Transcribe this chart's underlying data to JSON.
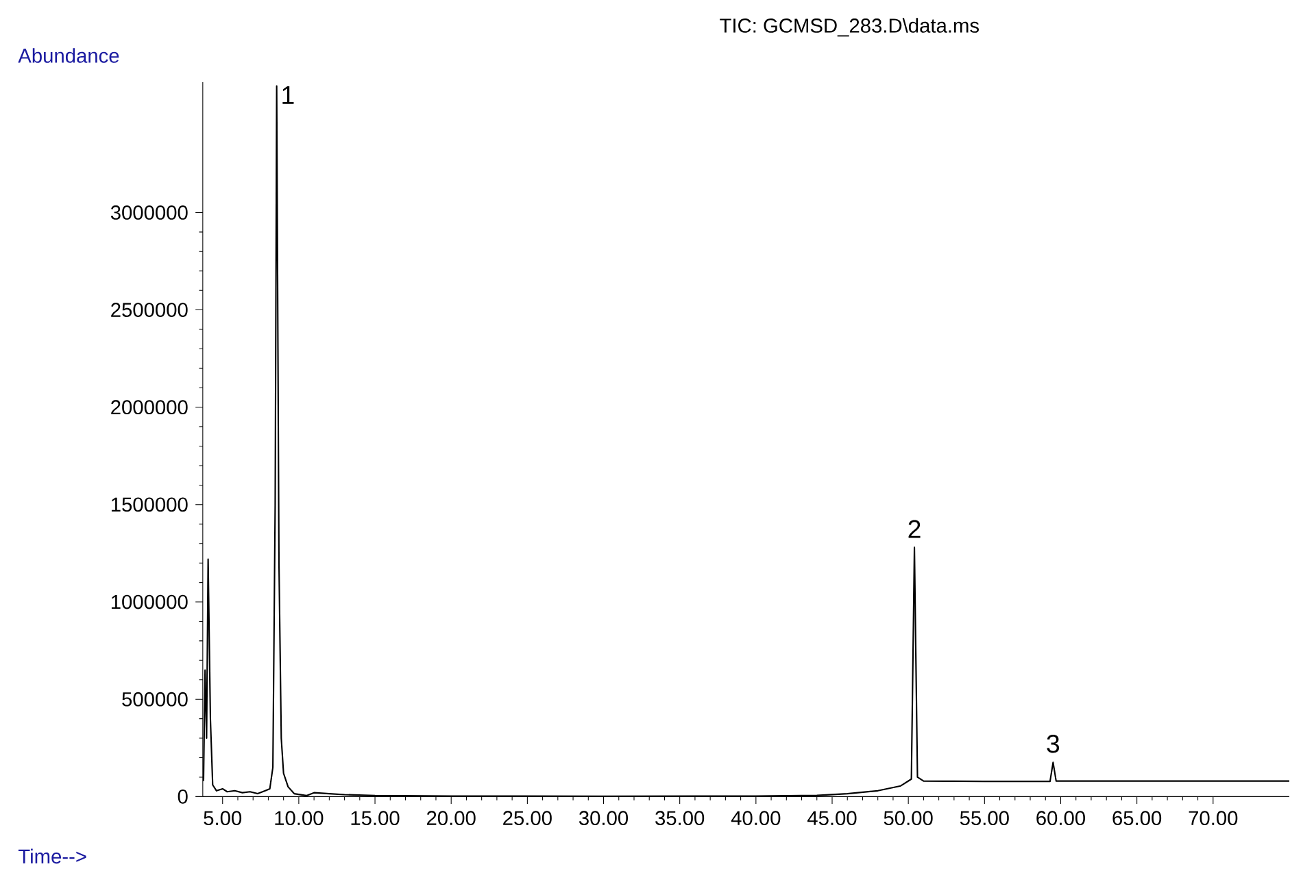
{
  "chart_data": {
    "type": "line",
    "title": "TIC: GCMSD_283.D\\data.ms",
    "xlabel": "Time-->",
    "ylabel": "Abundance",
    "x": [
      3.75,
      3.85,
      3.95,
      4.05,
      4.2,
      4.35,
      4.6,
      5.0,
      5.3,
      5.8,
      6.3,
      6.8,
      7.3,
      7.8,
      8.1,
      8.3,
      8.45,
      8.55,
      8.7,
      8.85,
      9.0,
      9.3,
      9.7,
      10.5,
      11,
      12,
      13,
      15,
      20,
      30,
      40,
      44,
      46,
      48,
      49.5,
      50.2,
      50.4,
      50.6,
      51,
      55,
      59.3,
      59.5,
      59.7,
      65,
      70,
      75
    ],
    "series": [
      {
        "color": "#000000",
        "values": [
          80000,
          650000,
          300000,
          1220000,
          400000,
          60000,
          30000,
          40000,
          25000,
          30000,
          20000,
          25000,
          15000,
          30000,
          40000,
          150000,
          1500000,
          3650000,
          1200000,
          300000,
          120000,
          50000,
          15000,
          5000,
          20000,
          15000,
          10000,
          5000,
          3000,
          2000,
          3000,
          6000,
          15000,
          30000,
          55000,
          90000,
          1280000,
          100000,
          80000,
          78000,
          78000,
          176000,
          80000,
          80000,
          80000,
          80000
        ]
      }
    ],
    "xlim": [
      3.7,
      75
    ],
    "ylim": [
      0,
      3670000
    ],
    "xticks": [
      {
        "value": 5,
        "label": "5.00"
      },
      {
        "value": 10,
        "label": "10.00"
      },
      {
        "value": 15,
        "label": "15.00"
      },
      {
        "value": 20,
        "label": "20.00"
      },
      {
        "value": 25,
        "label": "25.00"
      },
      {
        "value": 30,
        "label": "30.00"
      },
      {
        "value": 35,
        "label": "35.00"
      },
      {
        "value": 40,
        "label": "40.00"
      },
      {
        "value": 45,
        "label": "45.00"
      },
      {
        "value": 50,
        "label": "50.00"
      },
      {
        "value": 55,
        "label": "55.00"
      },
      {
        "value": 60,
        "label": "60.00"
      },
      {
        "value": 65,
        "label": "65.00"
      },
      {
        "value": 70,
        "label": "70.00"
      }
    ],
    "yticks": [
      0,
      500000,
      1000000,
      1500000,
      2000000,
      2500000,
      3000000
    ],
    "annotations": [
      {
        "text": "1",
        "x": 8.55,
        "y": 3650000
      },
      {
        "text": "2",
        "x": 50.4,
        "y": 1280000
      },
      {
        "text": "3",
        "x": 59.5,
        "y": 176000
      }
    ],
    "grid": false,
    "marker": "none",
    "line_style": "solid"
  }
}
